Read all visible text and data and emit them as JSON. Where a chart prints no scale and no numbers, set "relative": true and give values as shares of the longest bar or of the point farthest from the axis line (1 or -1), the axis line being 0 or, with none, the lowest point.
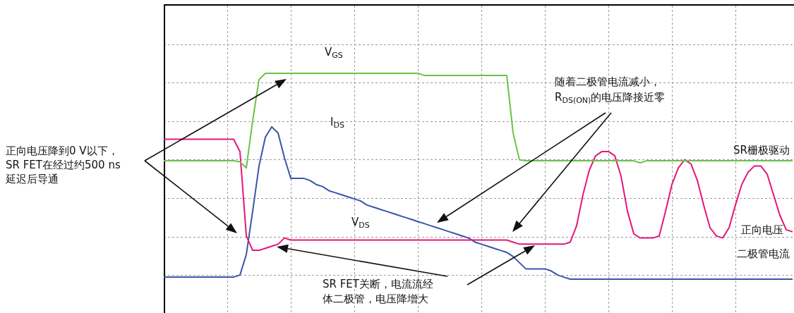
{
  "chart_data": {
    "type": "line",
    "relative": true,
    "grid": true,
    "marker": "none",
    "line_style": "solid",
    "categories": [
      null,
      null,
      null,
      null,
      null,
      null,
      null,
      null,
      null,
      null,
      null,
      null,
      null,
      null,
      null,
      null,
      null,
      null,
      null,
      null,
      null,
      null,
      null,
      null,
      null,
      null,
      null,
      null,
      null,
      null,
      null,
      null,
      null,
      null,
      null,
      null,
      null,
      null,
      null,
      null,
      null,
      null,
      null,
      null,
      null,
      null,
      null,
      null,
      null,
      null,
      null,
      null,
      null,
      null,
      null,
      null,
      null,
      null,
      null,
      null,
      null,
      null,
      null,
      null,
      null,
      null,
      null,
      null,
      null,
      null,
      null,
      null,
      null,
      null,
      null,
      null,
      null,
      null,
      null,
      null,
      null,
      null,
      null,
      null,
      null,
      null,
      null,
      null,
      null,
      null,
      null,
      null,
      null,
      null,
      null,
      null,
      null,
      null,
      null,
      null
    ],
    "series": [
      {
        "name": "SR栅极驱动",
        "color": "#6cc24a",
        "values": [
          0.575,
          0.575,
          0.575,
          0.575,
          0.575,
          0.575,
          0.575,
          0.575,
          0.575,
          0.575,
          0.575,
          0.575,
          0.57,
          0.54,
          0.77,
          0.97,
          1,
          1,
          1,
          1,
          1,
          1,
          1,
          1,
          1,
          1,
          1,
          1,
          1,
          1,
          1,
          1,
          1,
          1,
          1,
          1,
          1,
          1,
          1,
          1,
          1,
          0.99,
          0.99,
          0.99,
          0.99,
          0.99,
          0.99,
          0.99,
          0.99,
          0.99,
          0.99,
          0.99,
          0.99,
          0.99,
          0.99,
          0.71,
          0.58,
          0.575,
          0.575,
          0.575,
          0.575,
          0.575,
          0.575,
          0.575,
          0.575,
          0.575,
          0.575,
          0.575,
          0.575,
          0.575,
          0.575,
          0.575,
          0.575,
          0.575,
          0.575,
          0.565,
          0.575,
          0.575,
          0.575,
          0.575,
          0.575,
          0.575,
          0.575,
          0.575,
          0.575,
          0.575,
          0.575,
          0.575,
          0.575,
          0.575,
          0.575,
          0.575,
          0.575,
          0.575,
          0.575,
          0.575,
          0.575,
          0.575,
          0.575,
          0.575
        ]
      },
      {
        "name": "正向电压",
        "color": "#e6157a",
        "values": [
          0.68,
          0.68,
          0.68,
          0.68,
          0.68,
          0.68,
          0.68,
          0.68,
          0.68,
          0.68,
          0.68,
          0.68,
          0.62,
          0.21,
          0.14,
          0.14,
          0.15,
          0.16,
          0.17,
          0.2,
          0.19,
          0.19,
          0.19,
          0.19,
          0.19,
          0.19,
          0.19,
          0.19,
          0.19,
          0.19,
          0.19,
          0.19,
          0.19,
          0.19,
          0.19,
          0.19,
          0.19,
          0.19,
          0.19,
          0.19,
          0.19,
          0.19,
          0.19,
          0.19,
          0.19,
          0.19,
          0.19,
          0.19,
          0.19,
          0.19,
          0.19,
          0.19,
          0.19,
          0.19,
          0.19,
          0.18,
          0.17,
          0.17,
          0.17,
          0.17,
          0.17,
          0.17,
          0.17,
          0.17,
          0.18,
          0.26,
          0.41,
          0.53,
          0.6,
          0.62,
          0.62,
          0.6,
          0.5,
          0.33,
          0.22,
          0.2,
          0.2,
          0.2,
          0.21,
          0.33,
          0.46,
          0.54,
          0.58,
          0.56,
          0.48,
          0.36,
          0.25,
          0.21,
          0.2,
          0.25,
          0.36,
          0.46,
          0.52,
          0.55,
          0.55,
          0.51,
          0.41,
          0.31,
          0.24,
          0.23
        ]
      },
      {
        "name": "二极管电流",
        "color": "#3a55a8",
        "values": [
          0.01,
          0.01,
          0.01,
          0.01,
          0.01,
          0.01,
          0.01,
          0.01,
          0.01,
          0.01,
          0.01,
          0.01,
          0.02,
          0.12,
          0.33,
          0.55,
          0.69,
          0.74,
          0.71,
          0.59,
          0.49,
          0.49,
          0.49,
          0.48,
          0.46,
          0.45,
          0.43,
          0.42,
          0.41,
          0.4,
          0.39,
          0.38,
          0.36,
          0.35,
          0.34,
          0.33,
          0.32,
          0.31,
          0.3,
          0.29,
          0.28,
          0.27,
          0.26,
          0.25,
          0.24,
          0.23,
          0.22,
          0.21,
          0.2,
          0.18,
          0.17,
          0.16,
          0.15,
          0.14,
          0.13,
          0.11,
          0.08,
          0.05,
          0.05,
          0.05,
          0.05,
          0.04,
          0.02,
          0.01,
          0,
          0,
          0,
          0,
          0,
          0,
          0,
          0,
          0,
          0,
          0,
          0,
          0,
          0,
          0,
          0,
          0,
          0,
          0,
          0,
          0,
          0,
          0,
          0,
          0,
          0,
          0,
          0,
          0,
          0,
          0,
          0,
          0,
          0,
          0,
          0
        ]
      }
    ],
    "annotations": [
      "正向电压降到0 V以下，",
      "SR FET在经过约500 ns",
      "延迟后导通",
      "V$_{GS}$",
      "I$_{DS}$",
      "V$_{DS}$",
      "随着二极管电流减小，",
      "R$_{DS(ON)}$的电压降接近零",
      "SR FET关断，电流流经",
      "体二极管，电压降增大"
    ]
  }
}
